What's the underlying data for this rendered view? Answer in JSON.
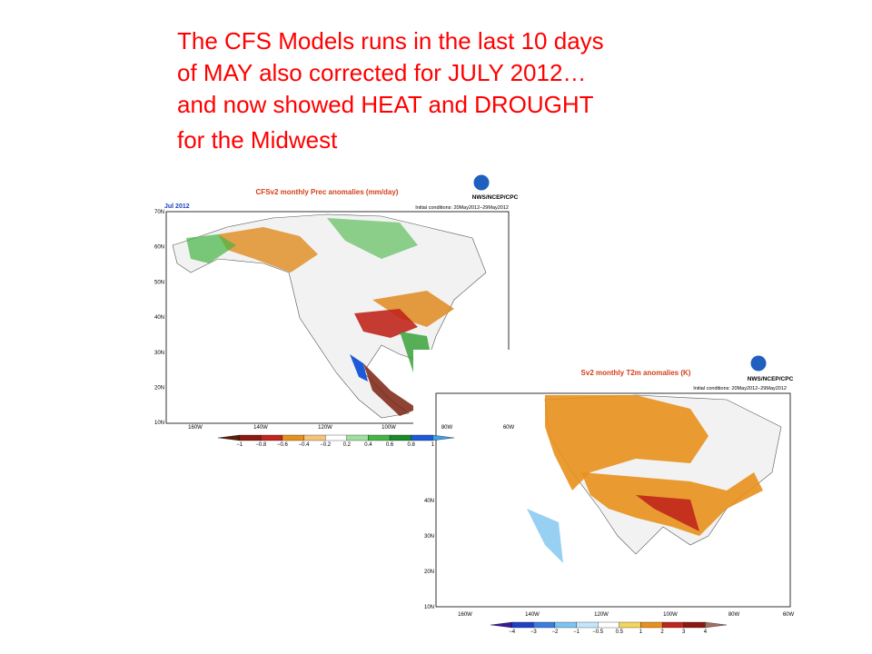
{
  "slide": {
    "title_lines": [
      "The CFS  Models  runs   in the last 10 days",
      "of   MAY  also  corrected  for JULY  2012…",
      "and now showed  HEAT and  DROUGHT",
      "for the Midwest"
    ],
    "maps": [
      {
        "title": "CFSv2 monthly Prec anomalies (mm/day)",
        "period": "Jul 2012",
        "agency": "NWS/NCEP/CPC",
        "initial": "Initial conditions: 20May2012–29May2012",
        "lat_labels": [
          "70N",
          "60N",
          "50N",
          "40N",
          "30N",
          "20N",
          "10N"
        ],
        "lon_labels": [
          "160W",
          "140W",
          "120W",
          "100W",
          "80W",
          "60W"
        ],
        "colorbar_labels": [
          "−1",
          "−0.8",
          "−0.6",
          "−0.4",
          "−0.2",
          "0.2",
          "0.4",
          "0.6",
          "0.8",
          "1"
        ]
      },
      {
        "title": "Sv2 monthly T2m anomalies (K)",
        "agency": "NWS/NCEP/CPC",
        "initial": "Initial conditions: 20May2012–29May2012",
        "lat_labels": [
          "40N",
          "30N",
          "20N",
          "10N"
        ],
        "lon_labels": [
          "160W",
          "140W",
          "120W",
          "100W",
          "80W",
          "60W"
        ],
        "colorbar_labels": [
          "−4",
          "−3",
          "−2",
          "−1",
          "−0.5",
          "0.5",
          "1",
          "2",
          "3",
          "4"
        ]
      }
    ]
  }
}
